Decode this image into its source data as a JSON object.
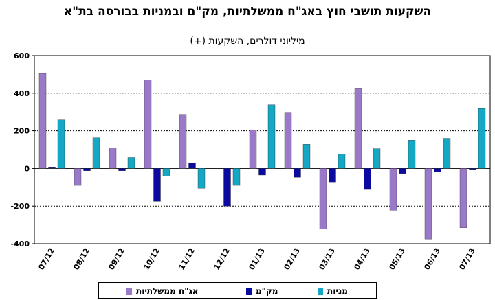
{
  "chart_data": {
    "type": "bar",
    "title": "השקעות תושבי חוץ באג\"ח ממשלתיות, מק\"ם ובמניות בבורסה בת\"א",
    "subtitle": "מיליוני דולרים, השקעות (+)",
    "categories": [
      "07/12",
      "08/12",
      "09/12",
      "10/12",
      "11/12",
      "12/12",
      "01/13",
      "02/13",
      "03/13",
      "04/13",
      "05/13",
      "06/13",
      "07/13"
    ],
    "series": [
      {
        "name": "אג\"ח ממשלתיות",
        "color": "#9a7ac8",
        "values": [
          505,
          -90,
          108,
          470,
          287,
          0,
          205,
          298,
          -322,
          427,
          -222,
          -375,
          -315
        ]
      },
      {
        "name": "מק\"מ",
        "color": "#0a0aa0",
        "values": [
          8,
          -12,
          -12,
          -175,
          30,
          -200,
          -35,
          -47,
          -72,
          -112,
          -27,
          -17,
          -5
        ]
      },
      {
        "name": "מניות",
        "color": "#14a8c4",
        "values": [
          258,
          163,
          58,
          -40,
          -105,
          -90,
          338,
          128,
          76,
          105,
          150,
          160,
          318
        ]
      }
    ],
    "ylim": [
      -400,
      600
    ],
    "yticks": [
      -400,
      -200,
      0,
      200,
      400,
      600
    ],
    "grid": true,
    "legend": "bottom"
  }
}
